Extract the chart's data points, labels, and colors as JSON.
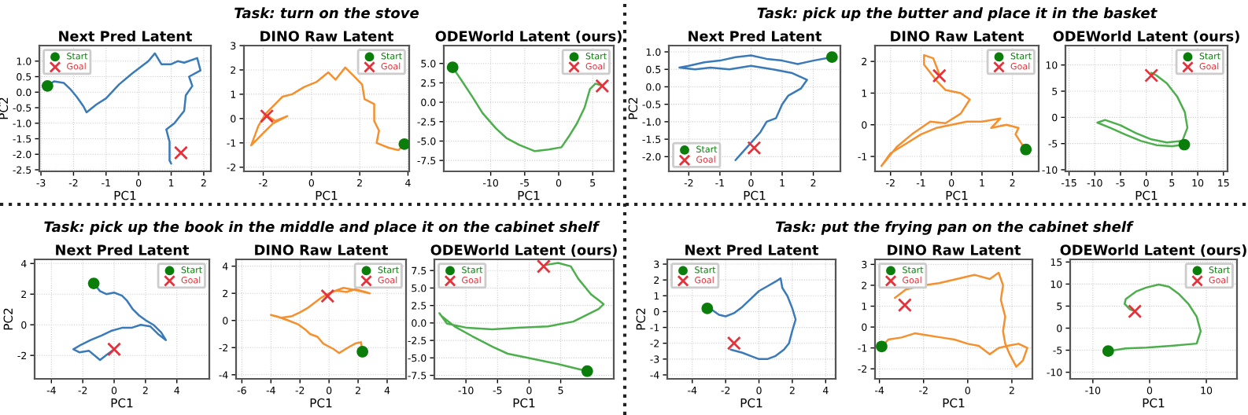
{
  "chart_data": [
    {
      "type": "line",
      "title": "Next Pred Latent",
      "xlabel": "PC1",
      "ylabel": "PC2",
      "xlim": [
        -3.05,
        2.22
      ],
      "ylim": [
        -2.55,
        1.5
      ],
      "xticks": [
        -3,
        -2,
        -1,
        0,
        1,
        2
      ],
      "yticks": [
        -2.5,
        {
          "value": -2,
          "label": "-2.0"
        },
        -1.5,
        {
          "value": -1,
          "label": "-1.0"
        },
        -0.5,
        {
          "value": 0,
          "label": "0.0"
        },
        0.5,
        {
          "value": 1,
          "label": "1.0"
        }
      ],
      "grid": true,
      "legend": "top left",
      "series": [
        {
          "color": "#3a7ab8",
          "x": [
            -2.8,
            -2.6,
            -2.3,
            -2.1,
            -1.9,
            -1.7,
            -1.6,
            -1.3,
            -1,
            -0.6,
            -0.2,
            0.3,
            0.5,
            0.7,
            1.0,
            1.2,
            1.4,
            1.8,
            1.9,
            1.55,
            1.65,
            1.45,
            1.4,
            1.1,
            0.85,
            0.95,
            0.95,
            1.0
          ],
          "values": [
            0.2,
            0.35,
            0.3,
            0.1,
            -0.15,
            -0.45,
            -0.65,
            -0.4,
            -0.2,
            0.25,
            0.6,
            1.0,
            1.25,
            0.9,
            0.9,
            1.0,
            0.95,
            1.1,
            0.7,
            0.5,
            0.2,
            -0.1,
            -0.6,
            -1.0,
            -1.2,
            -1.6,
            -2.2,
            -2.3
          ]
        },
        {
          "type": "scatter",
          "name": "Start",
          "color": "#0a7d0a",
          "marker": "circle",
          "x": [
            -2.8
          ],
          "values": [
            0.2
          ]
        },
        {
          "type": "scatter",
          "name": "Goal",
          "color": "#e8303a",
          "marker": "cross",
          "x": [
            1.3
          ],
          "values": [
            -1.95
          ]
        }
      ]
    },
    {
      "type": "line",
      "title": "DINO Raw Latent",
      "subtitle": "Task: turn on the stove",
      "xlabel": "PC1",
      "xlim": [
        -2.8,
        4.05
      ],
      "ylim": [
        -2.17,
        3.0
      ],
      "xticks": [
        -2,
        0,
        2,
        4
      ],
      "yticks": [
        -2,
        -1,
        0,
        1,
        2,
        3
      ],
      "grid": true,
      "legend": "top right",
      "series": [
        {
          "color": "#f5902e",
          "x": [
            3.85,
            3.6,
            3.2,
            2.7,
            2.8,
            2.6,
            2.6,
            2.2,
            2.1,
            1.8,
            1.4,
            1.0,
            0.7,
            0.2,
            -0.3,
            -0.8,
            -1.2,
            -1.6,
            -1.9,
            -2.2,
            -2.5,
            -2.0,
            -1.6,
            -1.0,
            -1.5,
            -1.8
          ],
          "values": [
            -1.05,
            -1.3,
            -1.2,
            -1.0,
            -0.5,
            -0.1,
            0.6,
            0.8,
            1.4,
            1.7,
            2.1,
            1.6,
            1.9,
            1.5,
            1.3,
            1.0,
            0.9,
            0.5,
            0.2,
            -0.3,
            -1.1,
            -0.6,
            -0.2,
            0.1,
            -0.1,
            0.1
          ]
        },
        {
          "type": "scatter",
          "name": "Start",
          "color": "#0a7d0a",
          "marker": "circle",
          "x": [
            3.85
          ],
          "values": [
            -1.05
          ]
        },
        {
          "type": "scatter",
          "name": "Goal",
          "color": "#e8303a",
          "marker": "cross",
          "x": [
            -1.85
          ],
          "values": [
            0.1
          ]
        }
      ]
    },
    {
      "type": "line",
      "title": "ODEWorld Latent (ours)",
      "xlabel": "PC1",
      "xlim": [
        -16.9,
        8.1
      ],
      "ylim": [
        -8.9,
        7.3
      ],
      "xticks": [
        -10,
        -5,
        0,
        5
      ],
      "yticks": [
        -7.5,
        {
          "value": -5,
          "label": "-5.0"
        },
        -2.5,
        {
          "value": 0,
          "label": "0.0"
        },
        2.5,
        {
          "value": 5,
          "label": "5.0"
        }
      ],
      "grid": true,
      "legend": "top right",
      "series": [
        {
          "color": "#4caf4c",
          "x": [
            -15.6,
            -14.2,
            -12.7,
            -11.2,
            -9.2,
            -7.7,
            -5.8,
            -3.5,
            -1.5,
            0.4,
            1.5,
            2.7,
            3.8,
            4.6,
            5.4,
            6.5
          ],
          "values": [
            4.5,
            2.7,
            0.7,
            -1.4,
            -3.4,
            -4.6,
            -5.5,
            -6.3,
            -6.1,
            -5.8,
            -4.4,
            -2.7,
            -0.7,
            1.7,
            2.4,
            2.1
          ]
        },
        {
          "type": "scatter",
          "name": "Start",
          "color": "#0a7d0a",
          "marker": "circle",
          "x": [
            -15.6
          ],
          "values": [
            4.5
          ]
        },
        {
          "type": "scatter",
          "name": "Goal",
          "color": "#e8303a",
          "marker": "cross",
          "x": [
            6.4
          ],
          "values": [
            2.1
          ]
        }
      ]
    },
    {
      "type": "line",
      "title": "Next Pred Latent",
      "xlabel": "PC1",
      "ylabel": "PC2",
      "xlim": [
        -2.64,
        2.87
      ],
      "ylim": [
        -2.42,
        1.18
      ],
      "xticks": [
        -2,
        -1,
        0,
        1,
        2
      ],
      "yticks": [
        {
          "value": -2,
          "label": "-2.0"
        },
        -1.5,
        {
          "value": -1,
          "label": "-1.0"
        },
        -0.5,
        {
          "value": 0,
          "label": "0.0"
        },
        0.5,
        {
          "value": 1,
          "label": "1.0"
        }
      ],
      "grid": true,
      "legend": "bottom left",
      "series": [
        {
          "color": "#3a7ab8",
          "x": [
            2.6,
            2.0,
            1.5,
            1.0,
            0.5,
            0,
            -0.5,
            -1.0,
            -1.5,
            -2.0,
            -2.3,
            -1.8,
            -1.3,
            -0.7,
            0,
            0.7,
            1.3,
            1.8,
            1.6,
            1.2,
            1.0,
            0.8,
            0.5,
            0.3,
            0.0,
            -0.3,
            -0.5
          ],
          "values": [
            0.85,
            0.75,
            0.65,
            0.75,
            0.8,
            0.9,
            0.85,
            0.75,
            0.7,
            0.6,
            0.55,
            0.5,
            0.55,
            0.5,
            0.6,
            0.5,
            0.4,
            0.2,
            -0.05,
            -0.25,
            -0.5,
            -0.9,
            -1.0,
            -1.3,
            -1.6,
            -1.9,
            -2.1
          ]
        },
        {
          "type": "scatter",
          "name": "Start",
          "color": "#0a7d0a",
          "marker": "circle",
          "x": [
            2.6
          ],
          "values": [
            0.85
          ]
        },
        {
          "type": "scatter",
          "name": "Goal",
          "color": "#e8303a",
          "marker": "cross",
          "x": [
            0.1
          ],
          "values": [
            -1.75
          ]
        }
      ]
    },
    {
      "type": "line",
      "title": "DINO Raw Latent",
      "subtitle": "Task: pick up the butter and place it in the basket",
      "xlabel": "PC1",
      "xlim": [
        -2.51,
        2.86
      ],
      "ylim": [
        -1.47,
        2.5
      ],
      "xticks": [
        -2,
        -1,
        0,
        1,
        2
      ],
      "yticks": [
        -1,
        0,
        1,
        2
      ],
      "grid": true,
      "legend": "top right",
      "series": [
        {
          "color": "#f5902e",
          "x": [
            2.44,
            2.3,
            2.1,
            2.2,
            1.8,
            1.3,
            1.6,
            1.0,
            0.5,
            0,
            -0.5,
            -1.0,
            -1.5,
            -2.0,
            -2.3,
            -1.8,
            -1.3,
            -0.7,
            -0.2,
            0.3,
            0.6,
            0.3,
            -0.2,
            -0.5,
            -0.9,
            -0.9,
            -0.6,
            -0.4
          ],
          "values": [
            -0.78,
            -0.6,
            -0.3,
            -0.1,
            0.0,
            -0.1,
            0.2,
            0.1,
            0.1,
            0.0,
            -0.1,
            -0.3,
            -0.6,
            -0.9,
            -1.3,
            -0.7,
            -0.3,
            0.1,
            0.05,
            0.35,
            0.8,
            1.0,
            1.1,
            1.4,
            1.9,
            2.2,
            2.1,
            1.6
          ]
        },
        {
          "type": "scatter",
          "name": "Start",
          "color": "#0a7d0a",
          "marker": "circle",
          "x": [
            2.44
          ],
          "values": [
            -0.78
          ]
        },
        {
          "type": "scatter",
          "name": "Goal",
          "color": "#e8303a",
          "marker": "cross",
          "x": [
            -0.4
          ],
          "values": [
            1.55
          ]
        }
      ]
    },
    {
      "type": "line",
      "title": "ODEWorld Latent (ours)",
      "xlabel": "PC1",
      "xlim": [
        -15.7,
        15.8
      ],
      "ylim": [
        -10.3,
        13.7
      ],
      "xticks": [
        -15,
        -10,
        -5,
        0,
        5,
        10,
        15
      ],
      "yticks": [
        -10,
        -5,
        0,
        5,
        10
      ],
      "grid": true,
      "legend": "top right",
      "series": [
        {
          "color": "#4caf4c",
          "x": [
            7.4,
            5,
            2,
            -1,
            -4,
            -7,
            -9.5,
            -8,
            -5,
            -2,
            1,
            4,
            7,
            8,
            7.5,
            6,
            4,
            2,
            1
          ],
          "values": [
            -5.2,
            -5.5,
            -5.3,
            -4.5,
            -3.3,
            -2,
            -1,
            -0.5,
            -1.5,
            -3,
            -4.2,
            -4.8,
            -4.5,
            -2,
            1,
            4,
            6.5,
            8,
            8.5
          ]
        },
        {
          "type": "scatter",
          "name": "Start",
          "color": "#0a7d0a",
          "marker": "circle",
          "x": [
            7.4
          ],
          "values": [
            -5.2
          ]
        },
        {
          "type": "scatter",
          "name": "Goal",
          "color": "#e8303a",
          "marker": "cross",
          "x": [
            1
          ],
          "values": [
            8
          ]
        }
      ]
    },
    {
      "type": "line",
      "title": "Next Pred Latent",
      "xlabel": "PC1",
      "ylabel": "PC2",
      "xlim": [
        -5.07,
        6.07
      ],
      "ylim": [
        -3.53,
        4.27
      ],
      "xticks": [
        -4,
        -2,
        0,
        2,
        4
      ],
      "yticks": [
        -2,
        0,
        2,
        4
      ],
      "grid": true,
      "legend": "top right",
      "series": [
        {
          "color": "#3a7ab8",
          "x": [
            -1.3,
            -0.9,
            -0.5,
            0,
            0.5,
            0.8,
            1.2,
            1.6,
            2.0,
            2.5,
            3.0,
            3.3,
            2.8,
            2.3,
            1.7,
            1.1,
            0.5,
            -0.2,
            -0.8,
            -1.5,
            -2.1,
            -2.6,
            -2.2,
            -1.6,
            -0.9,
            -0.4,
            0
          ],
          "values": [
            2.7,
            2.2,
            2.0,
            2.1,
            1.9,
            1.6,
            1.0,
            0.6,
            0.3,
            0.0,
            -0.5,
            -1.0,
            -0.6,
            -0.1,
            0.0,
            -0.2,
            -0.2,
            -0.4,
            -0.7,
            -1.0,
            -1.3,
            -1.6,
            -1.8,
            -1.7,
            -2.3,
            -1.9,
            -1.6
          ]
        },
        {
          "type": "scatter",
          "name": "Start",
          "color": "#0a7d0a",
          "marker": "circle",
          "x": [
            -1.3
          ],
          "values": [
            2.7
          ]
        },
        {
          "type": "scatter",
          "name": "Goal",
          "color": "#e8303a",
          "marker": "cross",
          "x": [
            0
          ],
          "values": [
            -1.6
          ]
        }
      ]
    },
    {
      "type": "line",
      "title": "DINO Raw Latent",
      "subtitle": "Task: pick up the book in the middle and place it on the cabinet shelf",
      "xlabel": "PC1",
      "xlim": [
        -6.4,
        5.3
      ],
      "ylim": [
        -4.3,
        4.5
      ],
      "xticks": [
        -6,
        -4,
        -2,
        0,
        2,
        4
      ],
      "yticks": [
        -4,
        -2,
        0,
        2,
        4
      ],
      "grid": true,
      "legend": "top right",
      "series": [
        {
          "color": "#f5902e",
          "x": [
            2.3,
            2.2,
            1.8,
            1.3,
            0.7,
            0.3,
            -0.4,
            -0.8,
            -1.3,
            -1.6,
            -2.1,
            -2.8,
            -3.6,
            -4,
            -3.3,
            -2.6,
            -2.0,
            -1.5,
            -1.0,
            -0.5,
            0,
            0.5,
            1.2,
            1.8,
            2.5,
            2.8,
            2.0,
            1.0,
            0.2,
            -0.1
          ],
          "values": [
            -2.3,
            -1.6,
            -1.7,
            -2.0,
            -2.4,
            -2.1,
            -1.7,
            -1.2,
            -1.0,
            -0.7,
            -0.3,
            0,
            0.3,
            0.4,
            0.2,
            0.3,
            0.6,
            0.9,
            1.3,
            1.7,
            2.0,
            2.2,
            2.1,
            2.3,
            2.1,
            2.0,
            2.2,
            2.4,
            2.1,
            1.8
          ]
        },
        {
          "type": "scatter",
          "name": "Start",
          "color": "#0a7d0a",
          "marker": "circle",
          "x": [
            2.3
          ],
          "values": [
            -2.3
          ]
        },
        {
          "type": "scatter",
          "name": "Goal",
          "color": "#e8303a",
          "marker": "cross",
          "x": [
            -0.1
          ],
          "values": [
            1.8
          ]
        }
      ]
    },
    {
      "type": "line",
      "title": "ODEWorld Latent (ours)",
      "xlabel": "PC1",
      "xlim": [
        -15,
        13.4
      ],
      "ylim": [
        -8,
        9.1
      ],
      "xticks": [
        -10,
        -5,
        0,
        5
      ],
      "yticks": [
        -7.5,
        {
          "value": -5,
          "label": "-5.0"
        },
        -2.5,
        {
          "value": 0,
          "label": "0.0"
        },
        2.5,
        {
          "value": 5,
          "label": "5.0"
        },
        7.5
      ],
      "grid": true,
      "legend": "top left",
      "series": [
        {
          "color": "#4caf4c",
          "x": [
            9.2,
            4.6,
            -0.2,
            -3.4,
            -5.8,
            -9,
            -11.8,
            -14,
            -14.2,
            -13,
            -9.8,
            -5.8,
            -1.8,
            3,
            7,
            11,
            11.8,
            9.8,
            7.8,
            6.6,
            4.6,
            2.6
          ],
          "values": [
            -6.9,
            -5.9,
            -5.0,
            -4.4,
            -3.4,
            -1.9,
            -0.5,
            1.1,
            1.4,
            -0.1,
            -0.7,
            -0.9,
            -0.7,
            -0.5,
            0.2,
            2.0,
            2.7,
            4.1,
            6.3,
            8.1,
            8.6,
            8.3
          ]
        },
        {
          "type": "scatter",
          "name": "Start",
          "color": "#0a7d0a",
          "marker": "circle",
          "x": [
            9.2
          ],
          "values": [
            -6.9
          ]
        },
        {
          "type": "scatter",
          "name": "Goal",
          "color": "#e8303a",
          "marker": "cross",
          "x": [
            2.3
          ],
          "values": [
            8.1
          ]
        }
      ]
    },
    {
      "type": "line",
      "title": "Next Pred Latent",
      "xlabel": "PC1",
      "ylabel": "PC2",
      "xlim": [
        -5.5,
        4.6
      ],
      "ylim": [
        -4.25,
        3.3
      ],
      "xticks": [
        -4,
        -2,
        0,
        2,
        4
      ],
      "yticks": [
        -4,
        -3,
        -2,
        -1,
        0,
        1,
        2,
        3
      ],
      "grid": true,
      "legend": "top left",
      "series": [
        {
          "color": "#3a7ab8",
          "x": [
            -3.1,
            -2.8,
            -2.4,
            -2.0,
            -1.5,
            -1.0,
            -0.5,
            0,
            0.5,
            1.0,
            1.3,
            1.4,
            1.7,
            2.0,
            2.2,
            2.0,
            1.8,
            1.5,
            1.0,
            0.5,
            0,
            -0.5,
            -1.0,
            -1.7
          ],
          "values": [
            0.2,
            0.1,
            -0.2,
            -0.3,
            -0.1,
            0.3,
            0.8,
            1.3,
            1.6,
            1.9,
            2.1,
            1.5,
            1.0,
            0.2,
            -0.5,
            -1.2,
            -2.0,
            -2.4,
            -2.8,
            -3.0,
            -3.0,
            -2.8,
            -2.6,
            -2.4
          ]
        },
        {
          "type": "scatter",
          "name": "Start",
          "color": "#0a7d0a",
          "marker": "circle",
          "x": [
            -3.1
          ],
          "values": [
            0.2
          ]
        },
        {
          "type": "scatter",
          "name": "Goal",
          "color": "#e8303a",
          "marker": "cross",
          "x": [
            -1.5
          ],
          "values": [
            -2.0
          ]
        }
      ]
    },
    {
      "type": "line",
      "title": "DINO Raw Latent",
      "subtitle": "Task: put the frying pan on the cabinet shelf",
      "xlabel": "PC1",
      "xlim": [
        -4.2,
        2.93
      ],
      "ylim": [
        -2.48,
        3.24
      ],
      "xticks": [
        -4,
        -2,
        0,
        2
      ],
      "yticks": [
        -2,
        -1,
        0,
        1,
        2,
        3
      ],
      "grid": true,
      "legend": "top left",
      "series": [
        {
          "color": "#f5902e",
          "x": [
            -3.9,
            -3.6,
            -3.0,
            -2.4,
            -1.8,
            -1.2,
            -0.6,
            0,
            0.5,
            1.0,
            1.4,
            1.8,
            2.3,
            2.7,
            2.5,
            2.2,
            1.9,
            1.7,
            1.6,
            1.7,
            1.5,
            1.6,
            1.4,
            1.0,
            0.3,
            -0.5,
            -1.3,
            -2.0,
            -2.8,
            -3.3
          ],
          "values": [
            -0.93,
            -0.6,
            -0.5,
            -0.3,
            -0.4,
            -0.5,
            -0.6,
            -0.8,
            -0.9,
            -1.3,
            -1.0,
            -0.9,
            -0.8,
            -1.0,
            -1.6,
            -1.9,
            -1.3,
            -0.8,
            -0.2,
            0.5,
            1.3,
            2.0,
            2.6,
            2.3,
            2.5,
            2.3,
            2.1,
            2.0,
            1.8,
            1.4
          ]
        },
        {
          "type": "scatter",
          "name": "Start",
          "color": "#0a7d0a",
          "marker": "circle",
          "x": [
            -3.9
          ],
          "values": [
            -0.93
          ]
        },
        {
          "type": "scatter",
          "name": "Goal",
          "color": "#e8303a",
          "marker": "cross",
          "x": [
            -2.85
          ],
          "values": [
            1.05
          ]
        }
      ]
    },
    {
      "type": "line",
      "title": "ODEWorld Latent (ours)",
      "xlabel": "PC1",
      "xlim": [
        -14,
        15.4
      ],
      "ylim": [
        -11.5,
        15.6
      ],
      "xticks": [
        -10,
        0,
        10
      ],
      "yticks": [
        -10,
        -5,
        0,
        5,
        10,
        15
      ],
      "grid": true,
      "legend": "top right",
      "series": [
        {
          "color": "#4caf4c",
          "x": [
            -7.3,
            -4.2,
            -0.6,
            3.8,
            8.3,
            9,
            8.3,
            6.9,
            5.2,
            3.4,
            1.6,
            -0.6,
            -2.4,
            -4.2,
            -4.4,
            -3.5,
            -2.6
          ],
          "values": [
            -5.2,
            -4.6,
            -4.4,
            -4.0,
            -3.5,
            -0.7,
            2.6,
            5.4,
            7.7,
            9.4,
            9.9,
            9.2,
            8.3,
            6.6,
            5.5,
            4.3,
            3.8
          ]
        },
        {
          "type": "scatter",
          "name": "Start",
          "color": "#0a7d0a",
          "marker": "circle",
          "x": [
            -7.3
          ],
          "values": [
            -5.2
          ]
        },
        {
          "type": "scatter",
          "name": "Goal",
          "color": "#e8303a",
          "marker": "cross",
          "x": [
            -2.6
          ],
          "values": [
            3.8
          ]
        }
      ]
    }
  ]
}
